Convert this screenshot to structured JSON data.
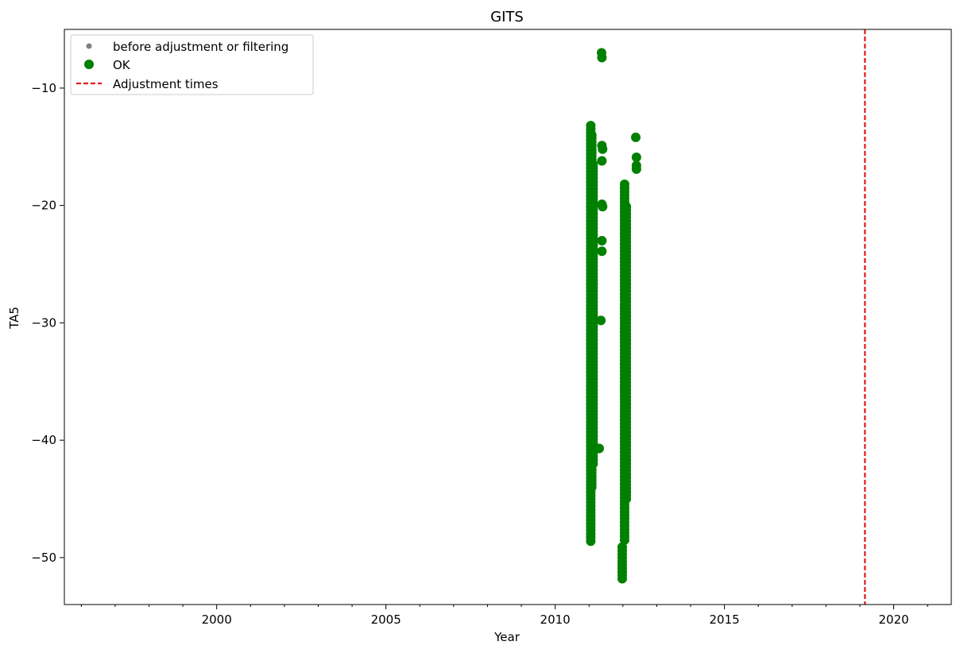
{
  "chart_data": {
    "type": "scatter",
    "title": "GITS",
    "xlabel": "Year",
    "ylabel": "TA5",
    "xlim": [
      1995.5,
      2021.7
    ],
    "ylim": [
      -54.0,
      -5.0
    ],
    "x_ticks": [
      2000,
      2005,
      2010,
      2015,
      2020
    ],
    "x_tick_labels": [
      "2000",
      "2005",
      "2010",
      "2015",
      "2020"
    ],
    "y_ticks": [
      -10,
      -20,
      -30,
      -40,
      -50
    ],
    "y_tick_labels": [
      "−10",
      "−20",
      "−30",
      "−40",
      "−50"
    ],
    "grid": false,
    "legend_position": "top-left",
    "legend": [
      {
        "label": "before adjustment or filtering",
        "marker": "small-dot",
        "color": "#808080"
      },
      {
        "label": "OK",
        "marker": "dot",
        "color": "#008000"
      },
      {
        "label": "Adjustment times",
        "marker": "dashed-line",
        "color": "#e41a1c"
      }
    ],
    "series": [
      {
        "name": "OK",
        "color": "#008000",
        "segments": [
          {
            "x": 2011.05,
            "y_min": -48.6,
            "y_max": -13.0
          },
          {
            "x": 2011.08,
            "y_min": -44.0,
            "y_max": -14.0
          },
          {
            "x": 2011.12,
            "y_min": -42.0,
            "y_max": -16.5
          },
          {
            "x": 2011.98,
            "y_min": -51.8,
            "y_max": -49.0
          },
          {
            "x": 2012.05,
            "y_min": -48.5,
            "y_max": -18.2
          },
          {
            "x": 2012.1,
            "y_min": -45.0,
            "y_max": -20.0
          }
        ],
        "points": [
          {
            "x": 2011.37,
            "y": -7.0
          },
          {
            "x": 2011.38,
            "y": -7.4
          },
          {
            "x": 2011.38,
            "y": -14.9
          },
          {
            "x": 2011.4,
            "y": -15.2
          },
          {
            "x": 2011.38,
            "y": -16.2
          },
          {
            "x": 2011.38,
            "y": -19.9
          },
          {
            "x": 2011.4,
            "y": -20.1
          },
          {
            "x": 2011.38,
            "y": -23.0
          },
          {
            "x": 2011.38,
            "y": -23.9
          },
          {
            "x": 2011.35,
            "y": -29.8
          },
          {
            "x": 2011.3,
            "y": -40.7
          },
          {
            "x": 2012.38,
            "y": -14.2
          },
          {
            "x": 2012.4,
            "y": -15.9
          },
          {
            "x": 2012.4,
            "y": -16.6
          },
          {
            "x": 2012.4,
            "y": -16.9
          }
        ]
      }
    ],
    "vlines": [
      {
        "name": "Adjustment times",
        "x": 2019.15,
        "color": "#e41a1c",
        "style": "dashed"
      }
    ]
  }
}
